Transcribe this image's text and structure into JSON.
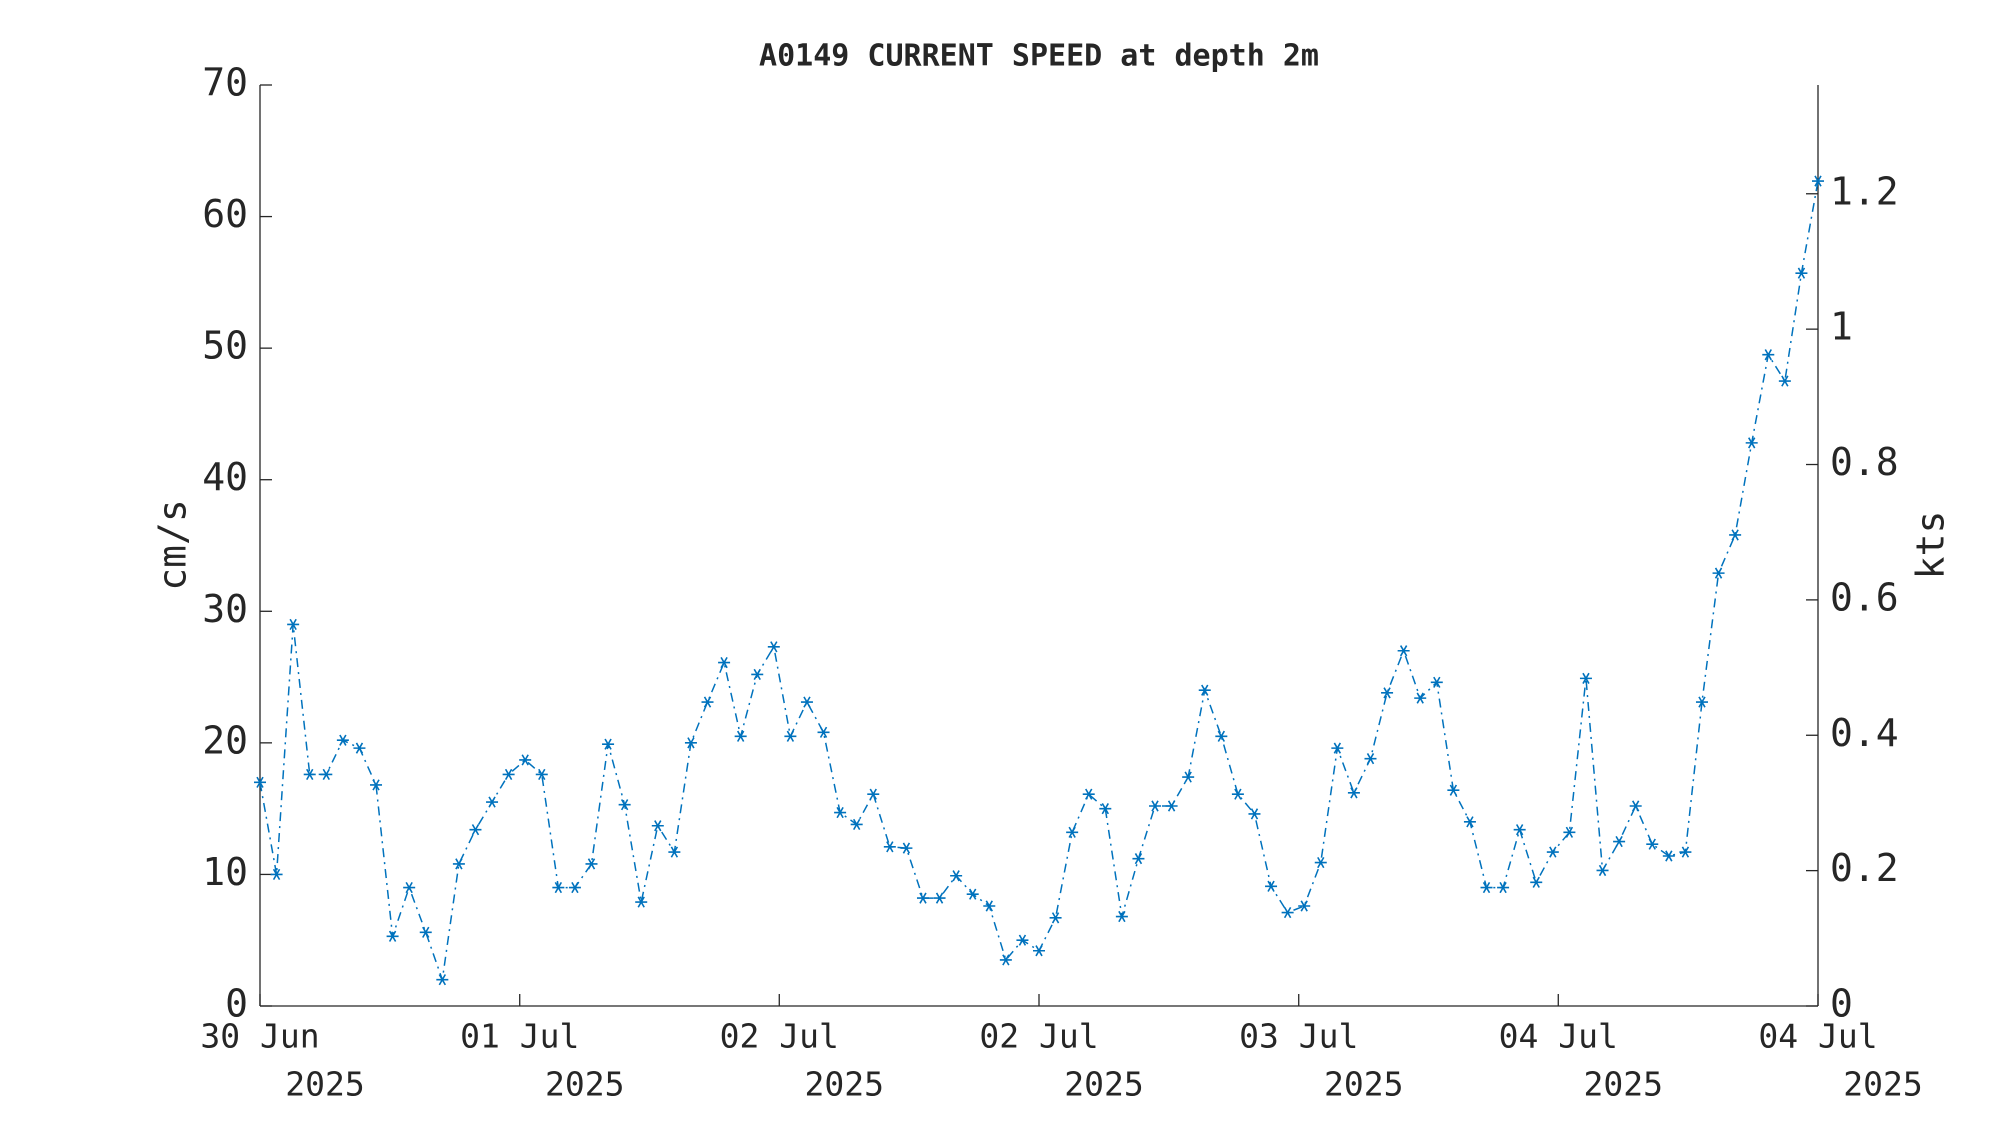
{
  "chart_data": {
    "type": "line",
    "title": "A0149 CURRENT SPEED at depth 2m",
    "ylabel": "cm/s",
    "y2label": "kts",
    "x": [
      0,
      1,
      2,
      3,
      4,
      5,
      6,
      7,
      8,
      9,
      10,
      11,
      12,
      13,
      14,
      15,
      16,
      17,
      18,
      19,
      20,
      21,
      22,
      23,
      24,
      25,
      26,
      27,
      28,
      29,
      30,
      31,
      32,
      33,
      34,
      35,
      36,
      37,
      38,
      39,
      40,
      41,
      42,
      43,
      44,
      45,
      46,
      47,
      48,
      49,
      50,
      51,
      52,
      53,
      54,
      55,
      56,
      57,
      58,
      59,
      60,
      61,
      62,
      63,
      64,
      65,
      66,
      67,
      68,
      69,
      70,
      71,
      72,
      73,
      74,
      75,
      76,
      77,
      78,
      79,
      80,
      81,
      82,
      83,
      84,
      85,
      86,
      87,
      88,
      89,
      90,
      91,
      92,
      93,
      94
    ],
    "series": [
      {
        "color": "#0072bd",
        "marker": "asterisk",
        "linestyle": "dash-dot",
        "values": [
          17,
          10,
          29,
          17.6,
          17.6,
          20.2,
          19.6,
          16.8,
          5.3,
          9,
          5.6,
          2,
          10.8,
          13.4,
          15.5,
          17.6,
          18.7,
          17.6,
          9,
          9,
          10.8,
          19.9,
          15.3,
          7.9,
          13.7,
          11.7,
          20,
          23.1,
          26.1,
          20.5,
          25.2,
          27.3,
          20.5,
          23.1,
          20.8,
          14.7,
          13.8,
          16.1,
          12.1,
          12,
          8.2,
          8.2,
          9.9,
          8.5,
          7.6,
          3.5,
          5,
          4.2,
          6.7,
          13.2,
          16.1,
          15,
          6.8,
          11.2,
          15.2,
          15.2,
          17.4,
          24,
          20.5,
          16.1,
          14.6,
          9.1,
          7.1,
          7.6,
          10.9,
          19.6,
          16.2,
          18.8,
          23.8,
          27,
          23.4,
          24.6,
          16.4,
          14,
          9,
          9,
          13.4,
          9.4,
          11.7,
          13.2,
          24.9,
          10.3,
          12.5,
          15.2,
          12.3,
          11.4,
          11.7,
          23.1,
          32.9,
          35.8,
          42.8,
          49.5,
          47.5,
          55.7,
          62.7
        ]
      }
    ],
    "xlim": [
      0,
      94
    ],
    "xticks": [
      {
        "value": 0,
        "label": [
          "30 Jun",
          "2025"
        ]
      },
      {
        "value": 15.67,
        "label": [
          "01 Jul",
          "2025"
        ]
      },
      {
        "value": 31.33,
        "label": [
          "02 Jul",
          "2025"
        ]
      },
      {
        "value": 47,
        "label": [
          "02 Jul",
          "2025"
        ]
      },
      {
        "value": 62.67,
        "label": [
          "03 Jul",
          "2025"
        ]
      },
      {
        "value": 78.33,
        "label": [
          "04 Jul",
          "2025"
        ]
      },
      {
        "value": 94,
        "label": [
          "04 Jul",
          "2025"
        ]
      }
    ],
    "ylim": [
      0,
      70
    ],
    "yticks": [
      0,
      10,
      20,
      30,
      40,
      50,
      60,
      70
    ],
    "y2lim": [
      0,
      1.3607
    ],
    "y2ticks": [
      0,
      0.2,
      0.4,
      0.6,
      0.8,
      1,
      1.2
    ]
  }
}
